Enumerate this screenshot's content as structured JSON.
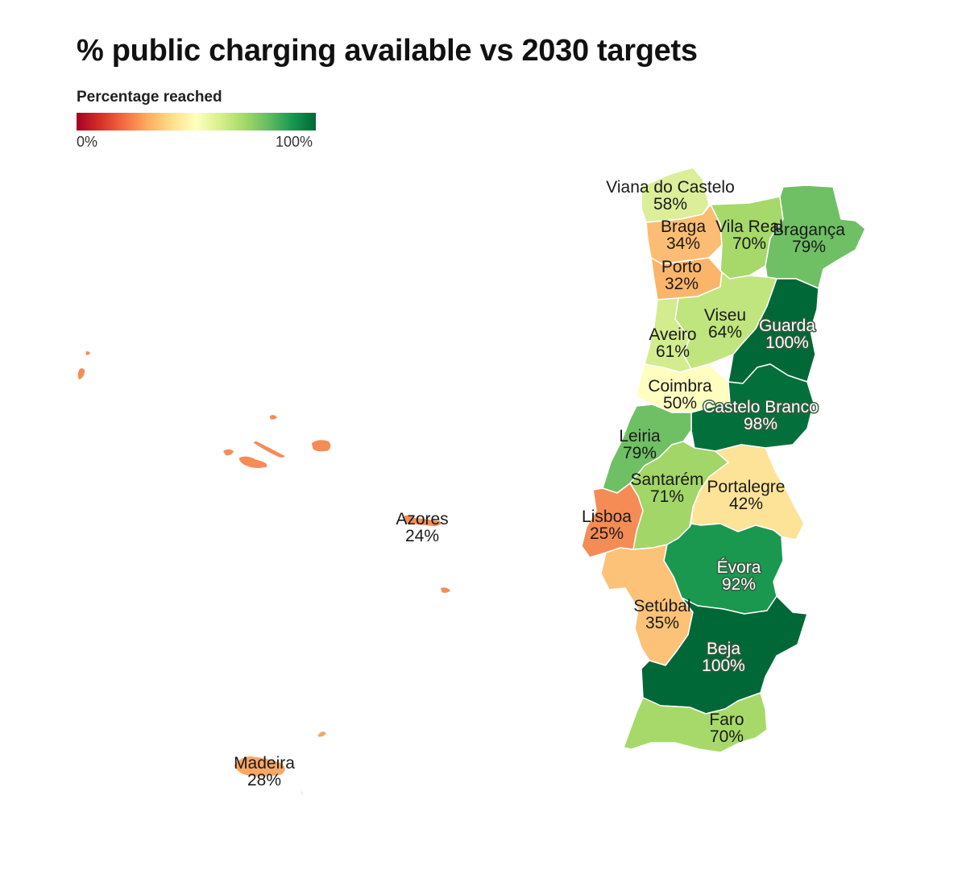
{
  "title": "% public charging available vs 2030 targets",
  "legend": {
    "title": "Percentage reached",
    "min_label": "0%",
    "max_label": "100%",
    "colors": [
      "#a50026",
      "#d73027",
      "#f46d43",
      "#fdae61",
      "#fee08b",
      "#ffffbf",
      "#d9ef8b",
      "#a6d96a",
      "#66bd63",
      "#1a9850",
      "#006837"
    ]
  },
  "regions": [
    {
      "id": "viana",
      "name": "Viana do Castelo",
      "value_label": "58%",
      "value": 58,
      "color": "#dcee99"
    },
    {
      "id": "braga",
      "name": "Braga",
      "value_label": "34%",
      "value": 34,
      "color": "#fbbd73"
    },
    {
      "id": "vilareal",
      "name": "Vila Real",
      "value_label": "70%",
      "value": 70,
      "color": "#a6d96a"
    },
    {
      "id": "braganca",
      "name": "Bragança",
      "value_label": "79%",
      "value": 79,
      "color": "#6fc064"
    },
    {
      "id": "porto",
      "name": "Porto",
      "value_label": "32%",
      "value": 32,
      "color": "#fbb56b"
    },
    {
      "id": "viseu",
      "name": "Viseu",
      "value_label": "64%",
      "value": 64,
      "color": "#c1e57e"
    },
    {
      "id": "aveiro",
      "name": "Aveiro",
      "value_label": "61%",
      "value": 61,
      "color": "#d3ec8e"
    },
    {
      "id": "guarda",
      "name": "Guarda",
      "value_label": "100%",
      "value": 100,
      "color": "#006837"
    },
    {
      "id": "coimbra",
      "name": "Coimbra",
      "value_label": "50%",
      "value": 50,
      "color": "#fffdc0"
    },
    {
      "id": "castelobranco",
      "name": "Castelo Branco",
      "value_label": "98%",
      "value": 98,
      "color": "#03703c"
    },
    {
      "id": "leiria",
      "name": "Leiria",
      "value_label": "79%",
      "value": 79,
      "color": "#6fc064"
    },
    {
      "id": "santarem",
      "name": "Santarém",
      "value_label": "71%",
      "value": 71,
      "color": "#a2d668"
    },
    {
      "id": "portalegre",
      "name": "Portalegre",
      "value_label": "42%",
      "value": 42,
      "color": "#fde397"
    },
    {
      "id": "lisboa",
      "name": "Lisboa",
      "value_label": "25%",
      "value": 25,
      "color": "#f58c56"
    },
    {
      "id": "evora",
      "name": "Évora",
      "value_label": "92%",
      "value": 92,
      "color": "#1a9850"
    },
    {
      "id": "setubal",
      "name": "Setúbal",
      "value_label": "35%",
      "value": 35,
      "color": "#fcc278"
    },
    {
      "id": "beja",
      "name": "Beja",
      "value_label": "100%",
      "value": 100,
      "color": "#006837"
    },
    {
      "id": "faro",
      "name": "Faro",
      "value_label": "70%",
      "value": 70,
      "color": "#a6d96a"
    },
    {
      "id": "azores",
      "name": "Azores",
      "value_label": "24%",
      "value": 24,
      "color": "#f58b55"
    },
    {
      "id": "madeira",
      "name": "Madeira",
      "value_label": "28%",
      "value": 28,
      "color": "#f9a766"
    }
  ]
}
